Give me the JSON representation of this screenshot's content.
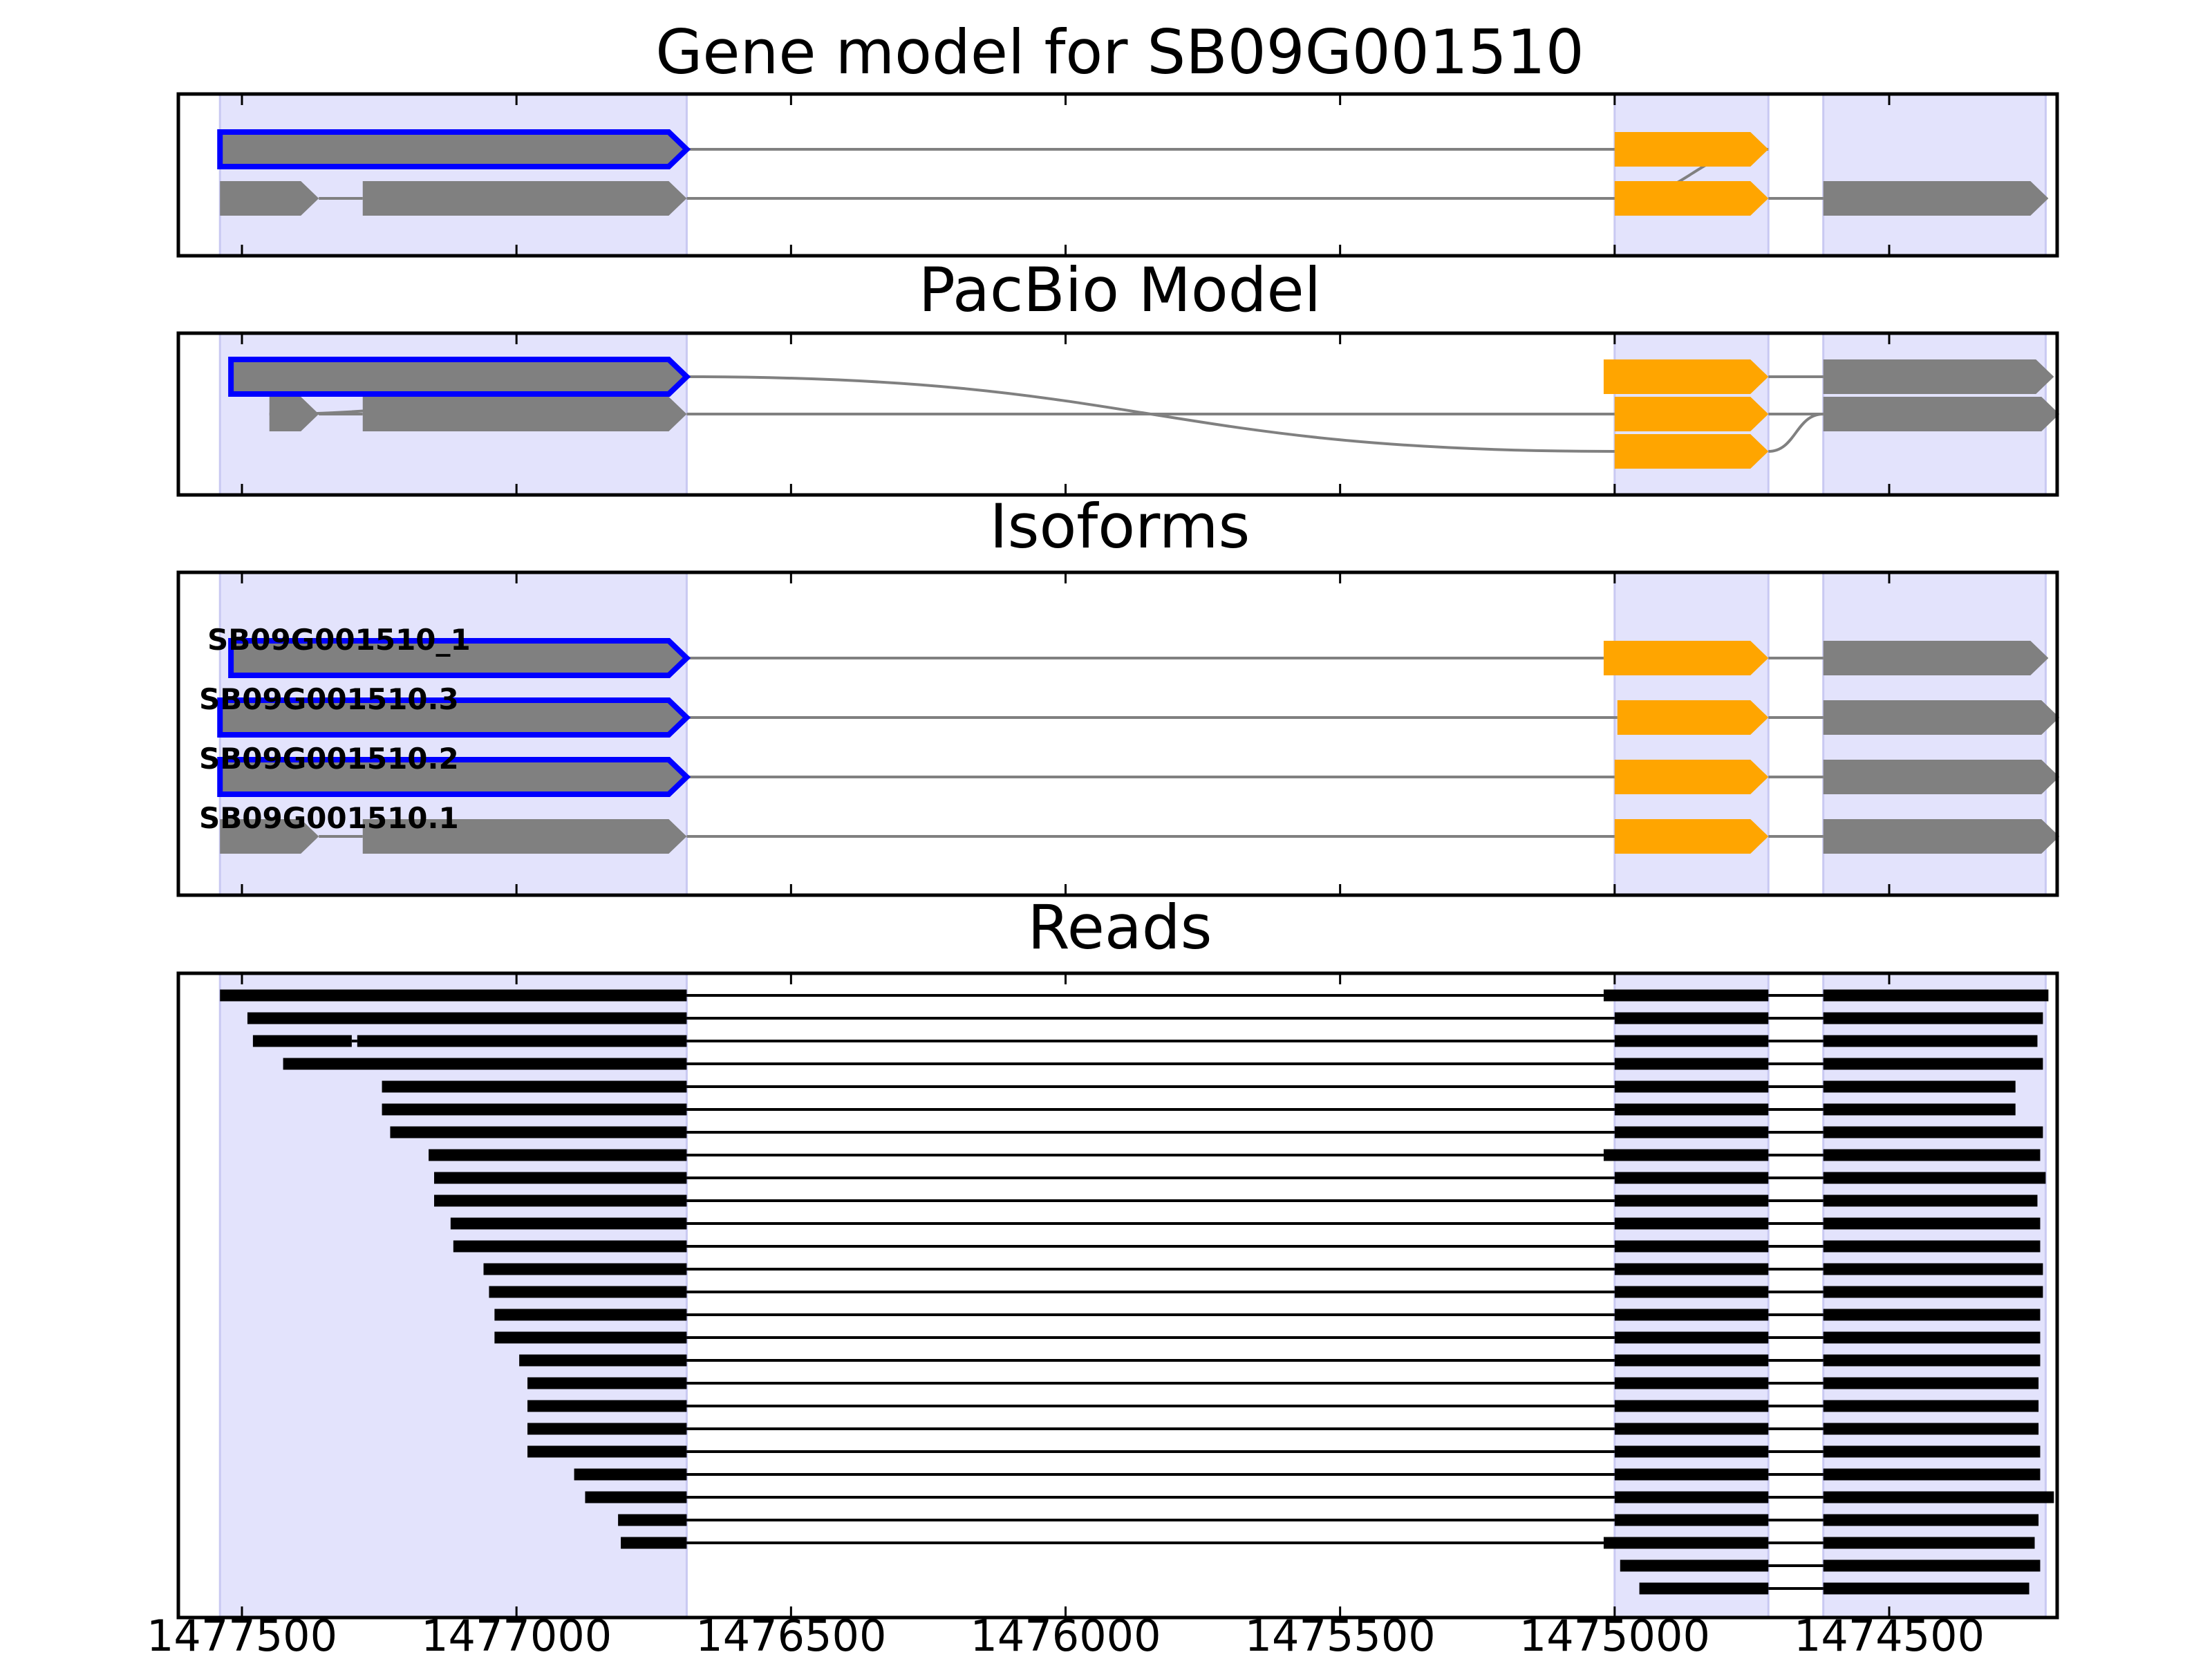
{
  "colors": {
    "exon": "#808080",
    "cds_highlight": "#FFA500",
    "selected_outline": "#0000FF",
    "read": "#000000",
    "intron": "#808080",
    "region_shade": "#E3E3FC",
    "frame": "#000000"
  },
  "chart_data": {
    "type": "gene-model",
    "title": "Gene model for SB09G001510",
    "strand": "-",
    "x_axis": {
      "range": [
        1477580,
        1474250
      ],
      "ticks": [
        1477500,
        1477000,
        1476500,
        1476000,
        1475500,
        1475000,
        1474500
      ],
      "tick_labels": [
        "1477500",
        "1477000",
        "1476500",
        "1476000",
        "1475500",
        "1475000",
        "1474500"
      ]
    },
    "shaded_regions": [
      [
        1477540,
        1476690
      ],
      [
        1475000,
        1474720
      ],
      [
        1474620,
        1474215
      ]
    ],
    "panels": [
      {
        "title": "Gene model for SB09G001510",
        "rows": [
          {
            "selected": true,
            "exons": [
              [
                1477540,
                1476690,
                "gray"
              ],
              [
                1475000,
                1474720,
                "orange"
              ]
            ],
            "links": [
              [
                0,
                1,
                1
              ]
            ]
          },
          {
            "selected": false,
            "exons": [
              [
                1477540,
                1477360,
                "gray"
              ],
              [
                1477280,
                1476690,
                "gray"
              ],
              [
                1475000,
                1474720,
                "orange"
              ],
              [
                1474620,
                1474210,
                "gray"
              ]
            ],
            "links": [
              [
                0,
                1,
                1
              ],
              [
                1,
                2,
                0
              ],
              [
                2,
                3,
                1
              ]
            ]
          }
        ],
        "row_links": [
          [
            0,
            1,
            1,
            2
          ]
        ]
      },
      {
        "title": "PacBio Model",
        "rows": [
          {
            "selected": true,
            "exons": [
              [
                1477520,
                1476690,
                "gray"
              ],
              [
                1475020,
                1474720,
                "orange"
              ],
              [
                1474620,
                1474200,
                "gray"
              ]
            ],
            "links": [
              [
                1,
                2,
                0
              ]
            ]
          },
          {
            "selected": false,
            "exons": [
              [
                1477450,
                1477360,
                "gray"
              ],
              [
                1477280,
                1476690,
                "gray"
              ],
              [
                1475000,
                1474720,
                "orange"
              ],
              [
                1474620,
                1474190,
                "gray"
              ]
            ],
            "links": [
              [
                0,
                1,
                0
              ],
              [
                1,
                2,
                0
              ],
              [
                2,
                3,
                0
              ]
            ]
          },
          {
            "selected": false,
            "exons": [
              [
                1475000,
                1474720,
                "orange"
              ]
            ],
            "links": []
          }
        ],
        "row_links": [
          [
            0,
            0,
            1,
            0
          ],
          [
            0,
            0,
            2,
            0
          ],
          [
            2,
            0,
            1,
            3
          ]
        ]
      },
      {
        "title": "Isoforms",
        "rows": [
          {
            "label": "SB09G001510_1",
            "selected": true,
            "exons": [
              [
                1477520,
                1476690,
                "gray"
              ],
              [
                1475020,
                1474720,
                "orange"
              ],
              [
                1474620,
                1474210,
                "gray"
              ]
            ],
            "links": [
              [
                0,
                1,
                0
              ],
              [
                1,
                2,
                0
              ]
            ]
          },
          {
            "label": "SB09G001510.3",
            "selected": true,
            "exons": [
              [
                1477540,
                1476690,
                "gray"
              ],
              [
                1474995,
                1474720,
                "orange"
              ],
              [
                1474620,
                1474190,
                "gray"
              ]
            ],
            "links": [
              [
                0,
                1,
                0
              ],
              [
                1,
                2,
                0
              ]
            ]
          },
          {
            "label": "SB09G001510.2",
            "selected": true,
            "exons": [
              [
                1477540,
                1476690,
                "gray"
              ],
              [
                1475000,
                1474720,
                "orange"
              ],
              [
                1474620,
                1474190,
                "gray"
              ]
            ],
            "links": [
              [
                0,
                1,
                0
              ],
              [
                1,
                2,
                0
              ]
            ]
          },
          {
            "label": "SB09G001510.1",
            "selected": false,
            "exons": [
              [
                1477540,
                1477360,
                "gray"
              ],
              [
                1477280,
                1476690,
                "gray"
              ],
              [
                1475000,
                1474720,
                "orange"
              ],
              [
                1474620,
                1474190,
                "gray"
              ]
            ],
            "links": [
              [
                0,
                1,
                0
              ],
              [
                1,
                2,
                0
              ],
              [
                2,
                3,
                0
              ]
            ]
          }
        ]
      },
      {
        "title": "Reads",
        "reads": [
          [
            [
              1477540,
              1476690
            ],
            [
              1475020,
              1474720
            ],
            [
              1474620,
              1474210
            ]
          ],
          [
            [
              1477490,
              1476690
            ],
            [
              1475000,
              1474720
            ],
            [
              1474620,
              1474220
            ]
          ],
          [
            [
              1477480,
              1477300
            ],
            [
              1477290,
              1476690
            ],
            [
              1475000,
              1474720
            ],
            [
              1474620,
              1474230
            ]
          ],
          [
            [
              1477425,
              1476690
            ],
            [
              1475000,
              1474720
            ],
            [
              1474620,
              1474220
            ]
          ],
          [
            [
              1477245,
              1476690
            ],
            [
              1475000,
              1474720
            ],
            [
              1474620,
              1474270
            ]
          ],
          [
            [
              1477245,
              1476690
            ],
            [
              1475000,
              1474720
            ],
            [
              1474620,
              1474270
            ]
          ],
          [
            [
              1477230,
              1476690
            ],
            [
              1475000,
              1474720
            ],
            [
              1474620,
              1474220
            ]
          ],
          [
            [
              1477160,
              1476690
            ],
            [
              1475020,
              1474720
            ],
            [
              1474620,
              1474225
            ]
          ],
          [
            [
              1477150,
              1476690
            ],
            [
              1475000,
              1474720
            ],
            [
              1474620,
              1474215
            ]
          ],
          [
            [
              1477150,
              1476690
            ],
            [
              1475000,
              1474720
            ],
            [
              1474620,
              1474230
            ]
          ],
          [
            [
              1477120,
              1476690
            ],
            [
              1475000,
              1474720
            ],
            [
              1474620,
              1474225
            ]
          ],
          [
            [
              1477115,
              1476690
            ],
            [
              1475000,
              1474720
            ],
            [
              1474620,
              1474225
            ]
          ],
          [
            [
              1477060,
              1476690
            ],
            [
              1475000,
              1474720
            ],
            [
              1474620,
              1474220
            ]
          ],
          [
            [
              1477050,
              1476690
            ],
            [
              1475000,
              1474720
            ],
            [
              1474620,
              1474220
            ]
          ],
          [
            [
              1477040,
              1476690
            ],
            [
              1475000,
              1474720
            ],
            [
              1474620,
              1474225
            ]
          ],
          [
            [
              1477040,
              1476690
            ],
            [
              1475000,
              1474720
            ],
            [
              1474620,
              1474225
            ]
          ],
          [
            [
              1476995,
              1476690
            ],
            [
              1475000,
              1474720
            ],
            [
              1474620,
              1474225
            ]
          ],
          [
            [
              1476980,
              1476690
            ],
            [
              1475000,
              1474720
            ],
            [
              1474620,
              1474228
            ]
          ],
          [
            [
              1476980,
              1476690
            ],
            [
              1475000,
              1474720
            ],
            [
              1474620,
              1474228
            ]
          ],
          [
            [
              1476980,
              1476690
            ],
            [
              1475000,
              1474720
            ],
            [
              1474620,
              1474228
            ]
          ],
          [
            [
              1476980,
              1476690
            ],
            [
              1475000,
              1474720
            ],
            [
              1474620,
              1474225
            ]
          ],
          [
            [
              1476895,
              1476690
            ],
            [
              1475000,
              1474720
            ],
            [
              1474620,
              1474225
            ]
          ],
          [
            [
              1476875,
              1476690
            ],
            [
              1475000,
              1474720
            ],
            [
              1474620,
              1474200
            ]
          ],
          [
            [
              1476815,
              1476690
            ],
            [
              1475000,
              1474720
            ],
            [
              1474620,
              1474228
            ]
          ],
          [
            [
              1476810,
              1476690
            ],
            [
              1475020,
              1474720
            ],
            [
              1474620,
              1474235
            ]
          ],
          [
            [
              1474990,
              1474720
            ],
            [
              1474620,
              1474225
            ]
          ],
          [
            [
              1474955,
              1474720
            ],
            [
              1474620,
              1474245
            ]
          ]
        ]
      }
    ]
  }
}
